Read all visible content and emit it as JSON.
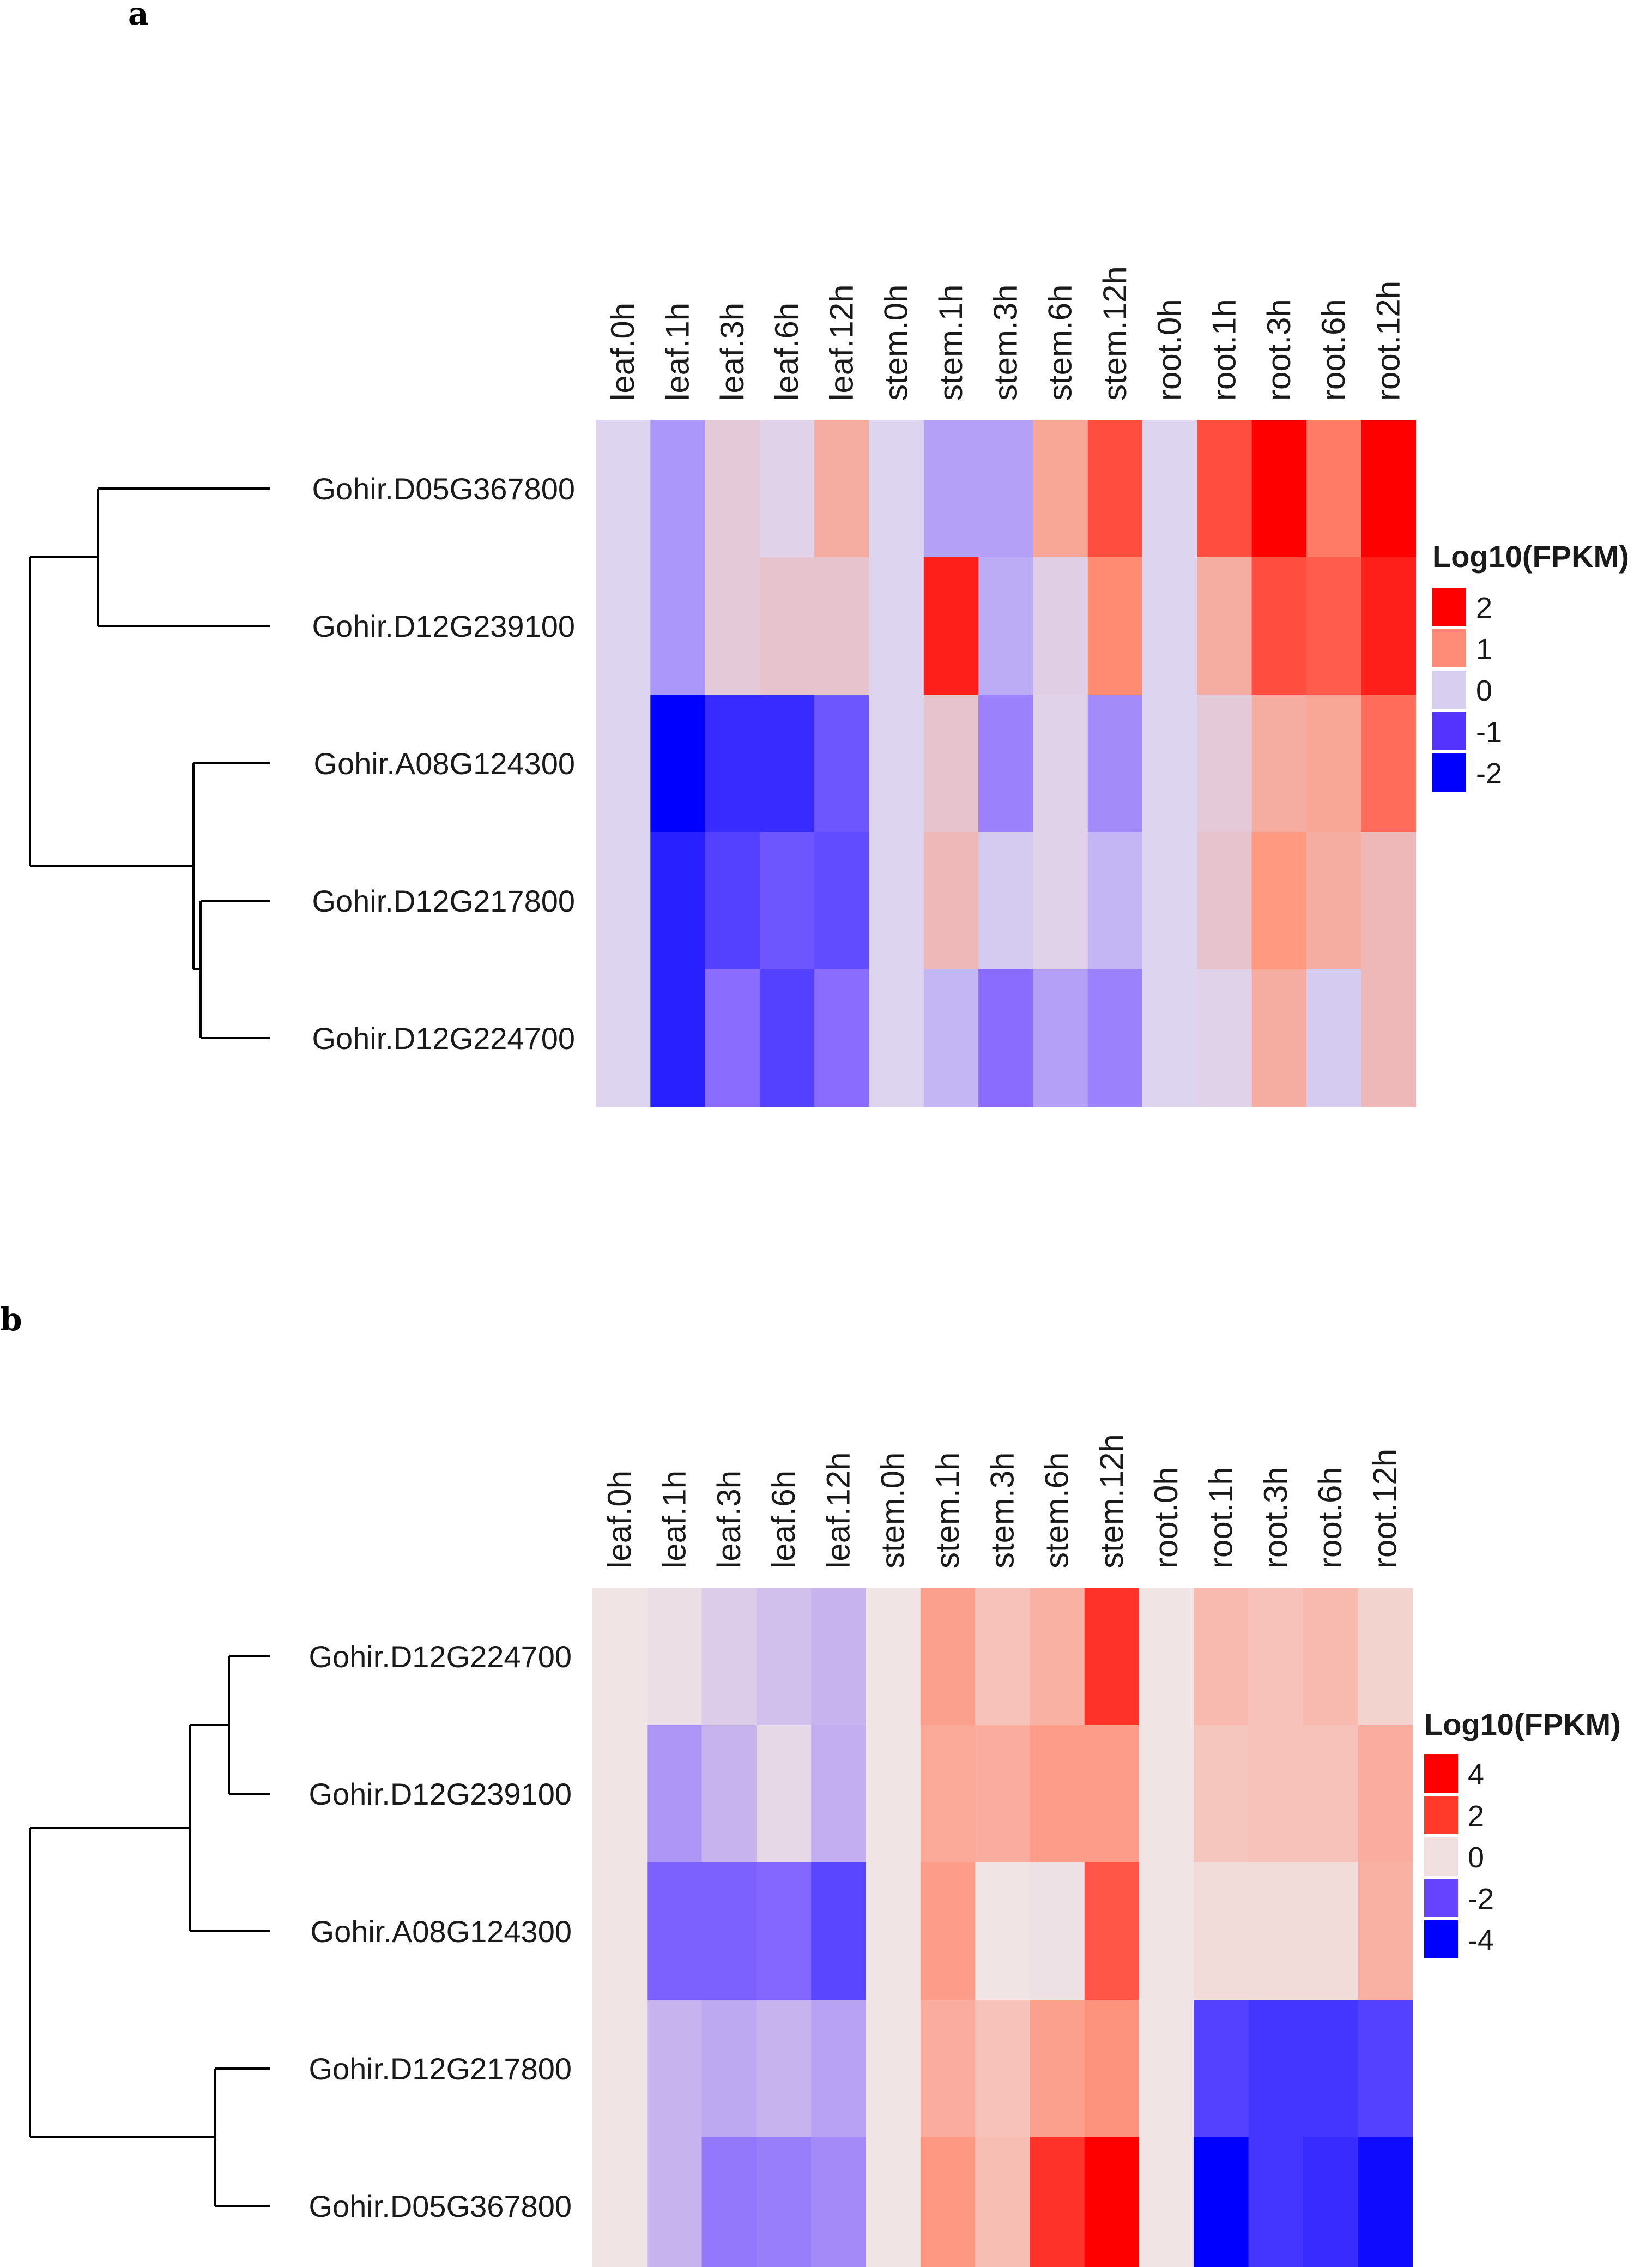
{
  "chart_data": [
    {
      "type": "heatmap",
      "panel_label": "a",
      "columns": [
        "leaf.0h",
        "leaf.1h",
        "leaf.3h",
        "leaf.6h",
        "leaf.12h",
        "stem.0h",
        "stem.1h",
        "stem.3h",
        "stem.6h",
        "stem.12h",
        "root.0h",
        "root.1h",
        "root.3h",
        "root.6h",
        "root.12h"
      ],
      "rows": [
        "Gohir.D05G367800",
        "Gohir.D12G239100",
        "Gohir.A08G124300",
        "Gohir.D12G217800",
        "Gohir.D12G224700"
      ],
      "values": [
        [
          0,
          -0.6,
          0.2,
          0.05,
          0.7,
          0,
          -0.5,
          -0.5,
          0.8,
          1.5,
          0,
          1.5,
          2.0,
          1.2,
          2.2
        ],
        [
          0,
          -0.6,
          0.2,
          0.3,
          0.3,
          0,
          1.8,
          -0.4,
          0.1,
          1.1,
          0,
          0.7,
          1.5,
          1.4,
          1.8
        ],
        [
          0,
          -2.0,
          -1.6,
          -1.6,
          -1.2,
          0,
          0.3,
          -0.8,
          0.05,
          -0.7,
          0,
          0.2,
          0.7,
          0.8,
          1.3
        ],
        [
          0,
          -1.7,
          -1.4,
          -1.2,
          -1.3,
          0,
          0.5,
          -0.1,
          0.05,
          -0.3,
          0,
          0.3,
          1.0,
          0.7,
          0.5
        ],
        [
          0,
          -1.7,
          -1.0,
          -1.4,
          -1.0,
          0,
          -0.3,
          -1.0,
          -0.5,
          -0.8,
          0,
          0.05,
          0.7,
          -0.1,
          0.5
        ]
      ],
      "color_scale": {
        "low": "#0000ff",
        "mid_low": "#8a6cff",
        "mid": "#ddd5ef",
        "mid_high": "#ff9a80",
        "high": "#ff0000",
        "domain": [
          -2,
          2
        ]
      },
      "legend": {
        "title": "Log10(FPKM)",
        "ticks": [
          "2",
          "1",
          "0",
          "-1",
          "-2"
        ],
        "colors": [
          "#ff0000",
          "#ff8c76",
          "#d8cff0",
          "#5533ff",
          "#0000ff"
        ]
      },
      "dendrogram": "row"
    },
    {
      "type": "heatmap",
      "panel_label": "b",
      "columns": [
        "leaf.0h",
        "leaf.1h",
        "leaf.3h",
        "leaf.6h",
        "leaf.12h",
        "stem.0h",
        "stem.1h",
        "stem.3h",
        "stem.6h",
        "stem.12h",
        "root.0h",
        "root.1h",
        "root.3h",
        "root.6h",
        "root.12h"
      ],
      "rows": [
        "Gohir.D12G224700",
        "Gohir.D12G239100",
        "Gohir.A08G124300",
        "Gohir.D12G217800",
        "Gohir.D05G367800"
      ],
      "values": [
        [
          0,
          -0.1,
          -0.4,
          -0.6,
          -0.8,
          0,
          1.6,
          0.8,
          1.2,
          3.3,
          0,
          1.0,
          0.8,
          1.0,
          0.4
        ],
        [
          0,
          -1.3,
          -0.8,
          -0.2,
          -0.9,
          0,
          1.4,
          1.3,
          1.7,
          1.7,
          0,
          0.7,
          0.8,
          0.8,
          1.3
        ],
        [
          0,
          -2.2,
          -2.2,
          -2.1,
          -2.7,
          0,
          1.7,
          0.0,
          -0.05,
          2.8,
          0,
          0.2,
          0.2,
          0.2,
          1.2
        ],
        [
          0,
          -0.8,
          -1.0,
          -0.8,
          -1.1,
          0,
          1.3,
          0.8,
          1.6,
          1.9,
          0,
          -2.8,
          -3.0,
          -3.0,
          -2.8
        ],
        [
          0,
          -0.8,
          -1.8,
          -1.7,
          -1.5,
          0,
          1.8,
          0.9,
          3.3,
          4.0,
          0,
          -4.0,
          -3.0,
          -3.2,
          -3.8
        ]
      ],
      "color_scale": {
        "low": "#0000ff",
        "mid_low": "#8a6cff",
        "mid": "#f0e4e4",
        "mid_high": "#ff8f78",
        "high": "#ff0000",
        "domain": [
          -4,
          4
        ]
      },
      "legend": {
        "title": "Log10(FPKM)",
        "ticks": [
          "4",
          "2",
          "0",
          "-2",
          "-4"
        ],
        "colors": [
          "#ff0000",
          "#ff3a2a",
          "#f0e0e0",
          "#6644ff",
          "#0000ff"
        ]
      },
      "dendrogram": "row"
    }
  ]
}
